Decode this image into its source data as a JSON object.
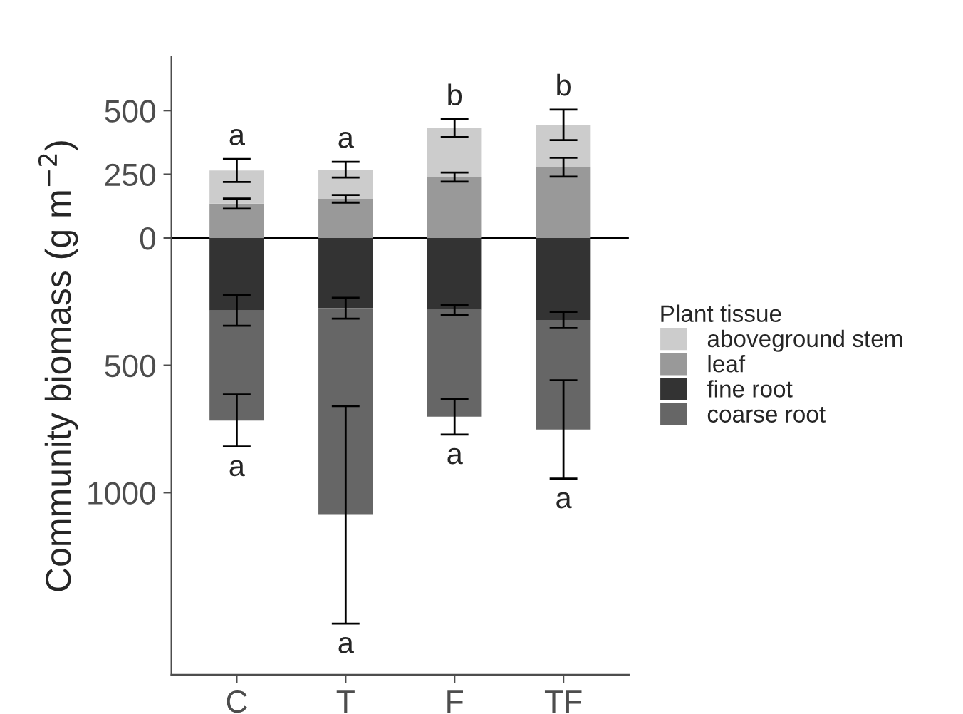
{
  "chart_data": {
    "type": "bar",
    "stacked": true,
    "ylabel": "Community biomass (g m$^{−2}$)",
    "legend_title": "Plant tissue",
    "legend": "right",
    "categories": [
      "C",
      "T",
      "F",
      "TF"
    ],
    "series": [
      {
        "name": "leaf",
        "color": "#999999",
        "values": [
          135,
          154,
          239,
          278
        ],
        "errors": [
          20,
          15,
          18,
          37
        ]
      },
      {
        "name": "aboveground stem",
        "color": "#cccccc",
        "values": [
          130,
          114,
          192,
          166
        ],
        "errors": [
          45,
          31,
          35,
          60
        ]
      },
      {
        "name": "fine root",
        "color": "#333333",
        "values": [
          -285,
          -276,
          -282,
          -322
        ],
        "errors": [
          60,
          41,
          20,
          32
        ]
      },
      {
        "name": "coarse root",
        "color": "#666666",
        "values": [
          -432,
          -811,
          -420,
          -430
        ],
        "errors": [
          102,
          427,
          70,
          193
        ]
      }
    ],
    "ylim": [
      -1715,
      710
    ],
    "yticks": [
      {
        "value": 500,
        "label": "500"
      },
      {
        "value": 250,
        "label": "250"
      },
      {
        "value": 0,
        "label": "0"
      },
      {
        "value": -500,
        "label": "500"
      },
      {
        "value": -1000,
        "label": "1000"
      }
    ],
    "ref_lines": [
      {
        "axis": "y",
        "value": 0,
        "color": "#000000"
      }
    ],
    "annotations": [
      "a",
      "a",
      "b",
      "b",
      "a",
      "a",
      "a",
      "a"
    ],
    "grid": false
  }
}
